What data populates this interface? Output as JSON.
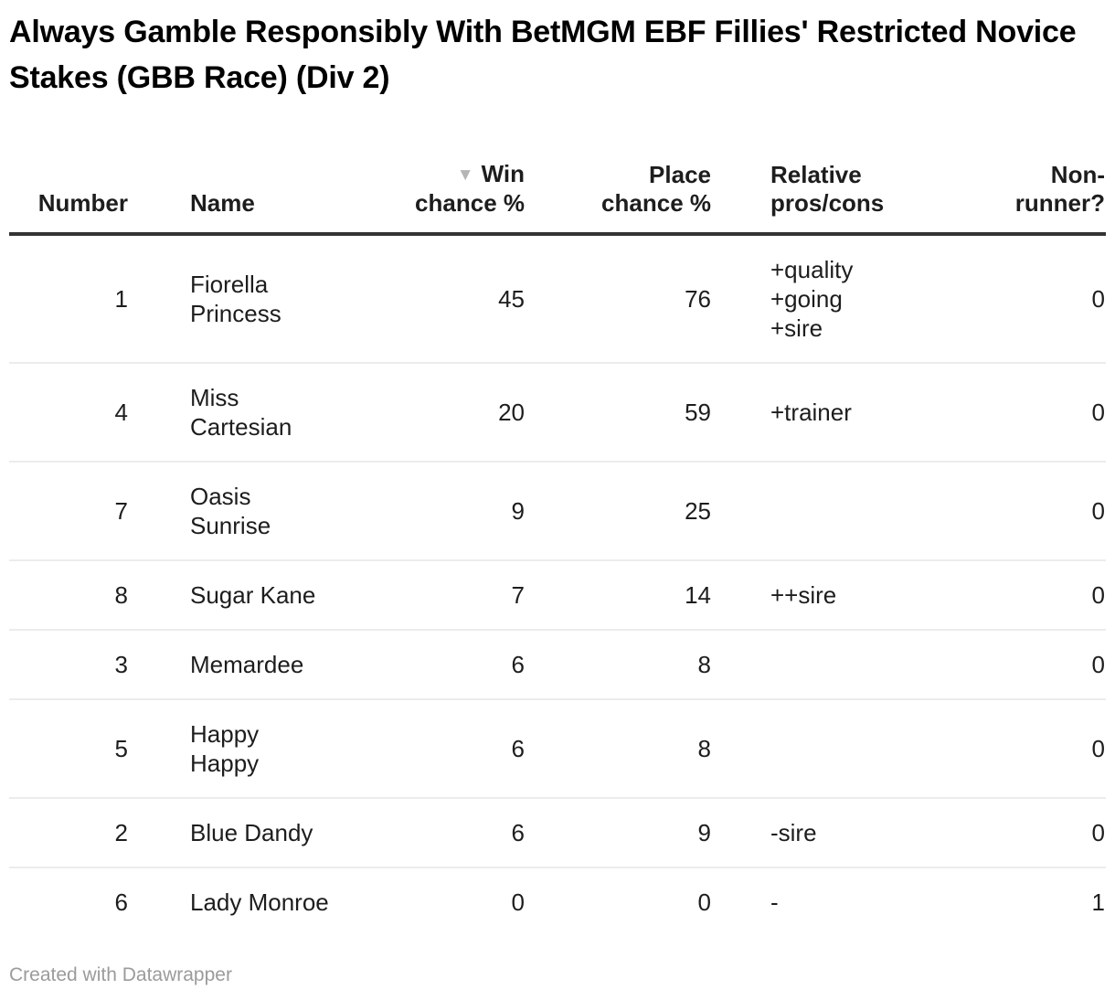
{
  "title": "Always Gamble Responsibly With BetMGM EBF Fillies' Restricted Novice Stakes (GBB Race) (Div 2)",
  "colors": {
    "title": "#000000",
    "body_text": "#1d1d1d",
    "header_rule": "#333333",
    "row_rule": "#ececec",
    "sort_arrow": "#b5b5b5",
    "credit_text": "#9b9b9b",
    "background": "#ffffff"
  },
  "table": {
    "sort_icon": "▼",
    "columns": [
      {
        "label": "Number",
        "align": "right",
        "sorted": false
      },
      {
        "label": "Name",
        "align": "left",
        "sorted": false
      },
      {
        "label": "Win\nchance %",
        "align": "right",
        "sorted": true
      },
      {
        "label": "Place\nchance %",
        "align": "right",
        "sorted": false
      },
      {
        "label": "Relative\npros/cons",
        "align": "left",
        "sorted": false
      },
      {
        "label": "Non-\nrunner?",
        "align": "right",
        "sorted": false
      }
    ],
    "rows": [
      {
        "number": "1",
        "name": "Fiorella\nPrincess",
        "win": "45",
        "place": "76",
        "pros_cons": "+quality\n+going\n+sire",
        "non_runner": "0"
      },
      {
        "number": "4",
        "name": "Miss\nCartesian",
        "win": "20",
        "place": "59",
        "pros_cons": "+trainer",
        "non_runner": "0"
      },
      {
        "number": "7",
        "name": "Oasis\nSunrise",
        "win": "9",
        "place": "25",
        "pros_cons": "",
        "non_runner": "0"
      },
      {
        "number": "8",
        "name": "Sugar Kane",
        "win": "7",
        "place": "14",
        "pros_cons": "++sire",
        "non_runner": "0"
      },
      {
        "number": "3",
        "name": "Memardee",
        "win": "6",
        "place": "8",
        "pros_cons": "",
        "non_runner": "0"
      },
      {
        "number": "5",
        "name": "Happy\nHappy",
        "win": "6",
        "place": "8",
        "pros_cons": "",
        "non_runner": "0"
      },
      {
        "number": "2",
        "name": "Blue Dandy",
        "win": "6",
        "place": "9",
        "pros_cons": "-sire",
        "non_runner": "0"
      },
      {
        "number": "6",
        "name": "Lady Monroe",
        "win": "0",
        "place": "0",
        "pros_cons": "-",
        "non_runner": "1"
      }
    ]
  },
  "footer": {
    "credit": "Created with Datawrapper"
  },
  "chart_data": {
    "type": "table",
    "title": "Always Gamble Responsibly With BetMGM EBF Fillies' Restricted Novice Stakes (GBB Race) (Div 2)",
    "columns": [
      "Number",
      "Name",
      "Win chance %",
      "Place chance %",
      "Relative pros/cons",
      "Non-runner?"
    ],
    "rows": [
      [
        1,
        "Fiorella Princess",
        45,
        76,
        "+quality +going +sire",
        0
      ],
      [
        4,
        "Miss Cartesian",
        20,
        59,
        "+trainer",
        0
      ],
      [
        7,
        "Oasis Sunrise",
        9,
        25,
        "",
        0
      ],
      [
        8,
        "Sugar Kane",
        7,
        14,
        "++sire",
        0
      ],
      [
        3,
        "Memardee",
        6,
        8,
        "",
        0
      ],
      [
        5,
        "Happy Happy",
        6,
        8,
        "",
        0
      ],
      [
        2,
        "Blue Dandy",
        6,
        9,
        "-sire",
        0
      ],
      [
        6,
        "Lady Monroe",
        0,
        0,
        "-",
        1
      ]
    ],
    "sorted_by": "Win chance %",
    "sort_order": "descending",
    "footer": "Created with Datawrapper"
  }
}
